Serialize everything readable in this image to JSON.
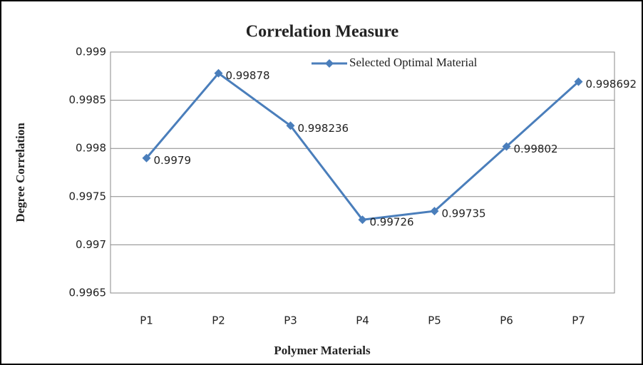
{
  "chart_data": {
    "type": "line",
    "title": "Correlation Measure",
    "x_label": "Polymer Materials",
    "y_label": "Degree Correlation",
    "categories": [
      "P1",
      "P2",
      "P3",
      "P4",
      "P5",
      "P6",
      "P7"
    ],
    "series": [
      {
        "name": "Selected Optimal Material",
        "color": "#4a7ebb",
        "values": [
          0.9979,
          0.99878,
          0.998236,
          0.99726,
          0.99735,
          0.99802,
          0.998692
        ]
      }
    ],
    "ylim": [
      0.9965,
      0.999
    ],
    "yticks": [
      0.9965,
      0.997,
      0.9975,
      0.998,
      0.9985,
      0.999
    ],
    "grid": true,
    "legend": "top",
    "data_labels": true
  }
}
